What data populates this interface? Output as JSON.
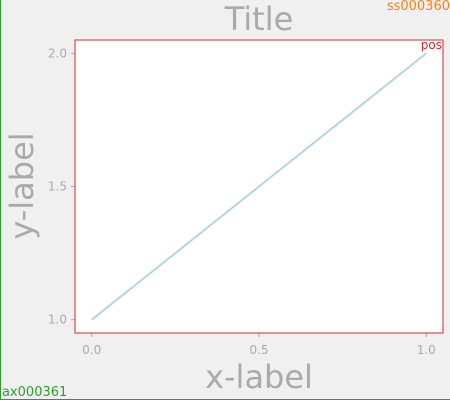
{
  "figure": {
    "tag_top_right": "ss000360",
    "tag_bottom_left": "ax000361"
  },
  "chart_data": {
    "type": "line",
    "title": "Title",
    "xlabel": "x-label",
    "ylabel": "y-label",
    "xlim": [
      -0.05,
      1.05
    ],
    "ylim": [
      0.95,
      2.05
    ],
    "xticks": [
      0.0,
      0.5,
      1.0
    ],
    "xtick_labels": [
      "0.0",
      "0.5",
      "1.0"
    ],
    "yticks": [
      1.0,
      1.5,
      2.0
    ],
    "ytick_labels": [
      "1.0",
      "1.5",
      "2.0"
    ],
    "grid": false,
    "annotation": "pos",
    "series": [
      {
        "x": [
          0.0,
          1.0
        ],
        "y": [
          1.0,
          2.0
        ]
      }
    ],
    "colors": {
      "line": "#b6d4e6",
      "axes_frame": "#d62728",
      "text": "#aaaaaa",
      "annotation": "#d62728"
    }
  }
}
